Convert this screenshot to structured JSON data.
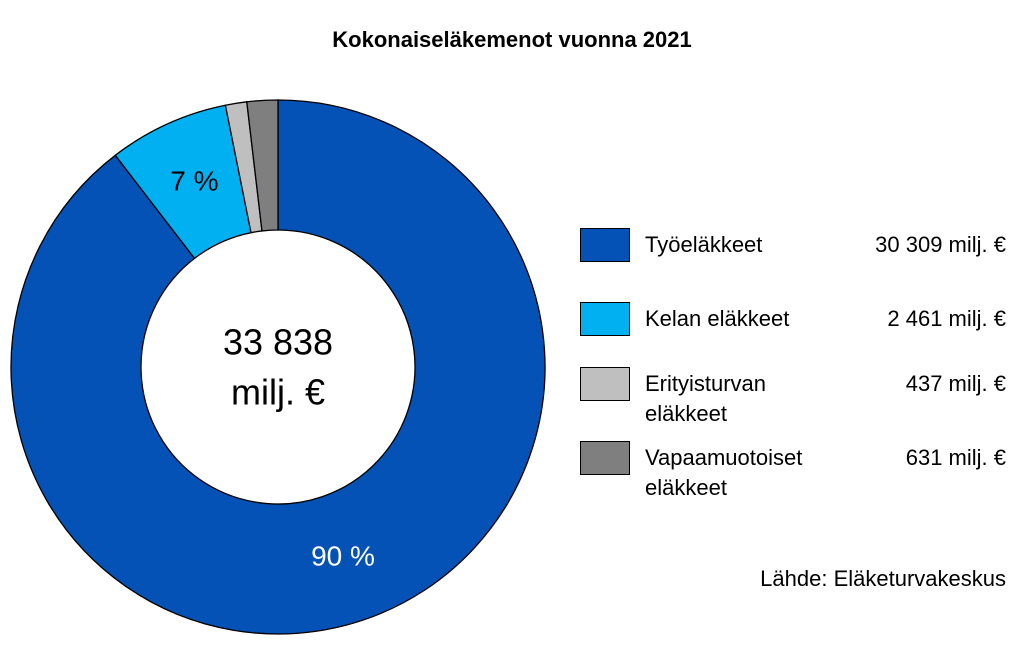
{
  "chart_data": {
    "type": "donut",
    "title": "Kokonaiseläkemenot vuonna 2021",
    "categories": [
      "Työeläkkeet",
      "Kelan eläkkeet",
      "Erityisturvan eläkkeet",
      "Vapaamuotoiset eläkkeet"
    ],
    "values": [
      30309,
      2461,
      437,
      631
    ],
    "value_labels": [
      "30 309 milj. €",
      "2 461 milj. €",
      "437 milj. €",
      "631 milj. €"
    ],
    "slice_labels": [
      "90 %",
      "7 %",
      null,
      null
    ],
    "colors": [
      "#0452b6",
      "#00b0f0",
      "#bfbfbf",
      "#7f7f7f"
    ],
    "center_label": [
      "33 838",
      "milj. €"
    ],
    "source": "Lähde: Eläketurvakeskus"
  }
}
